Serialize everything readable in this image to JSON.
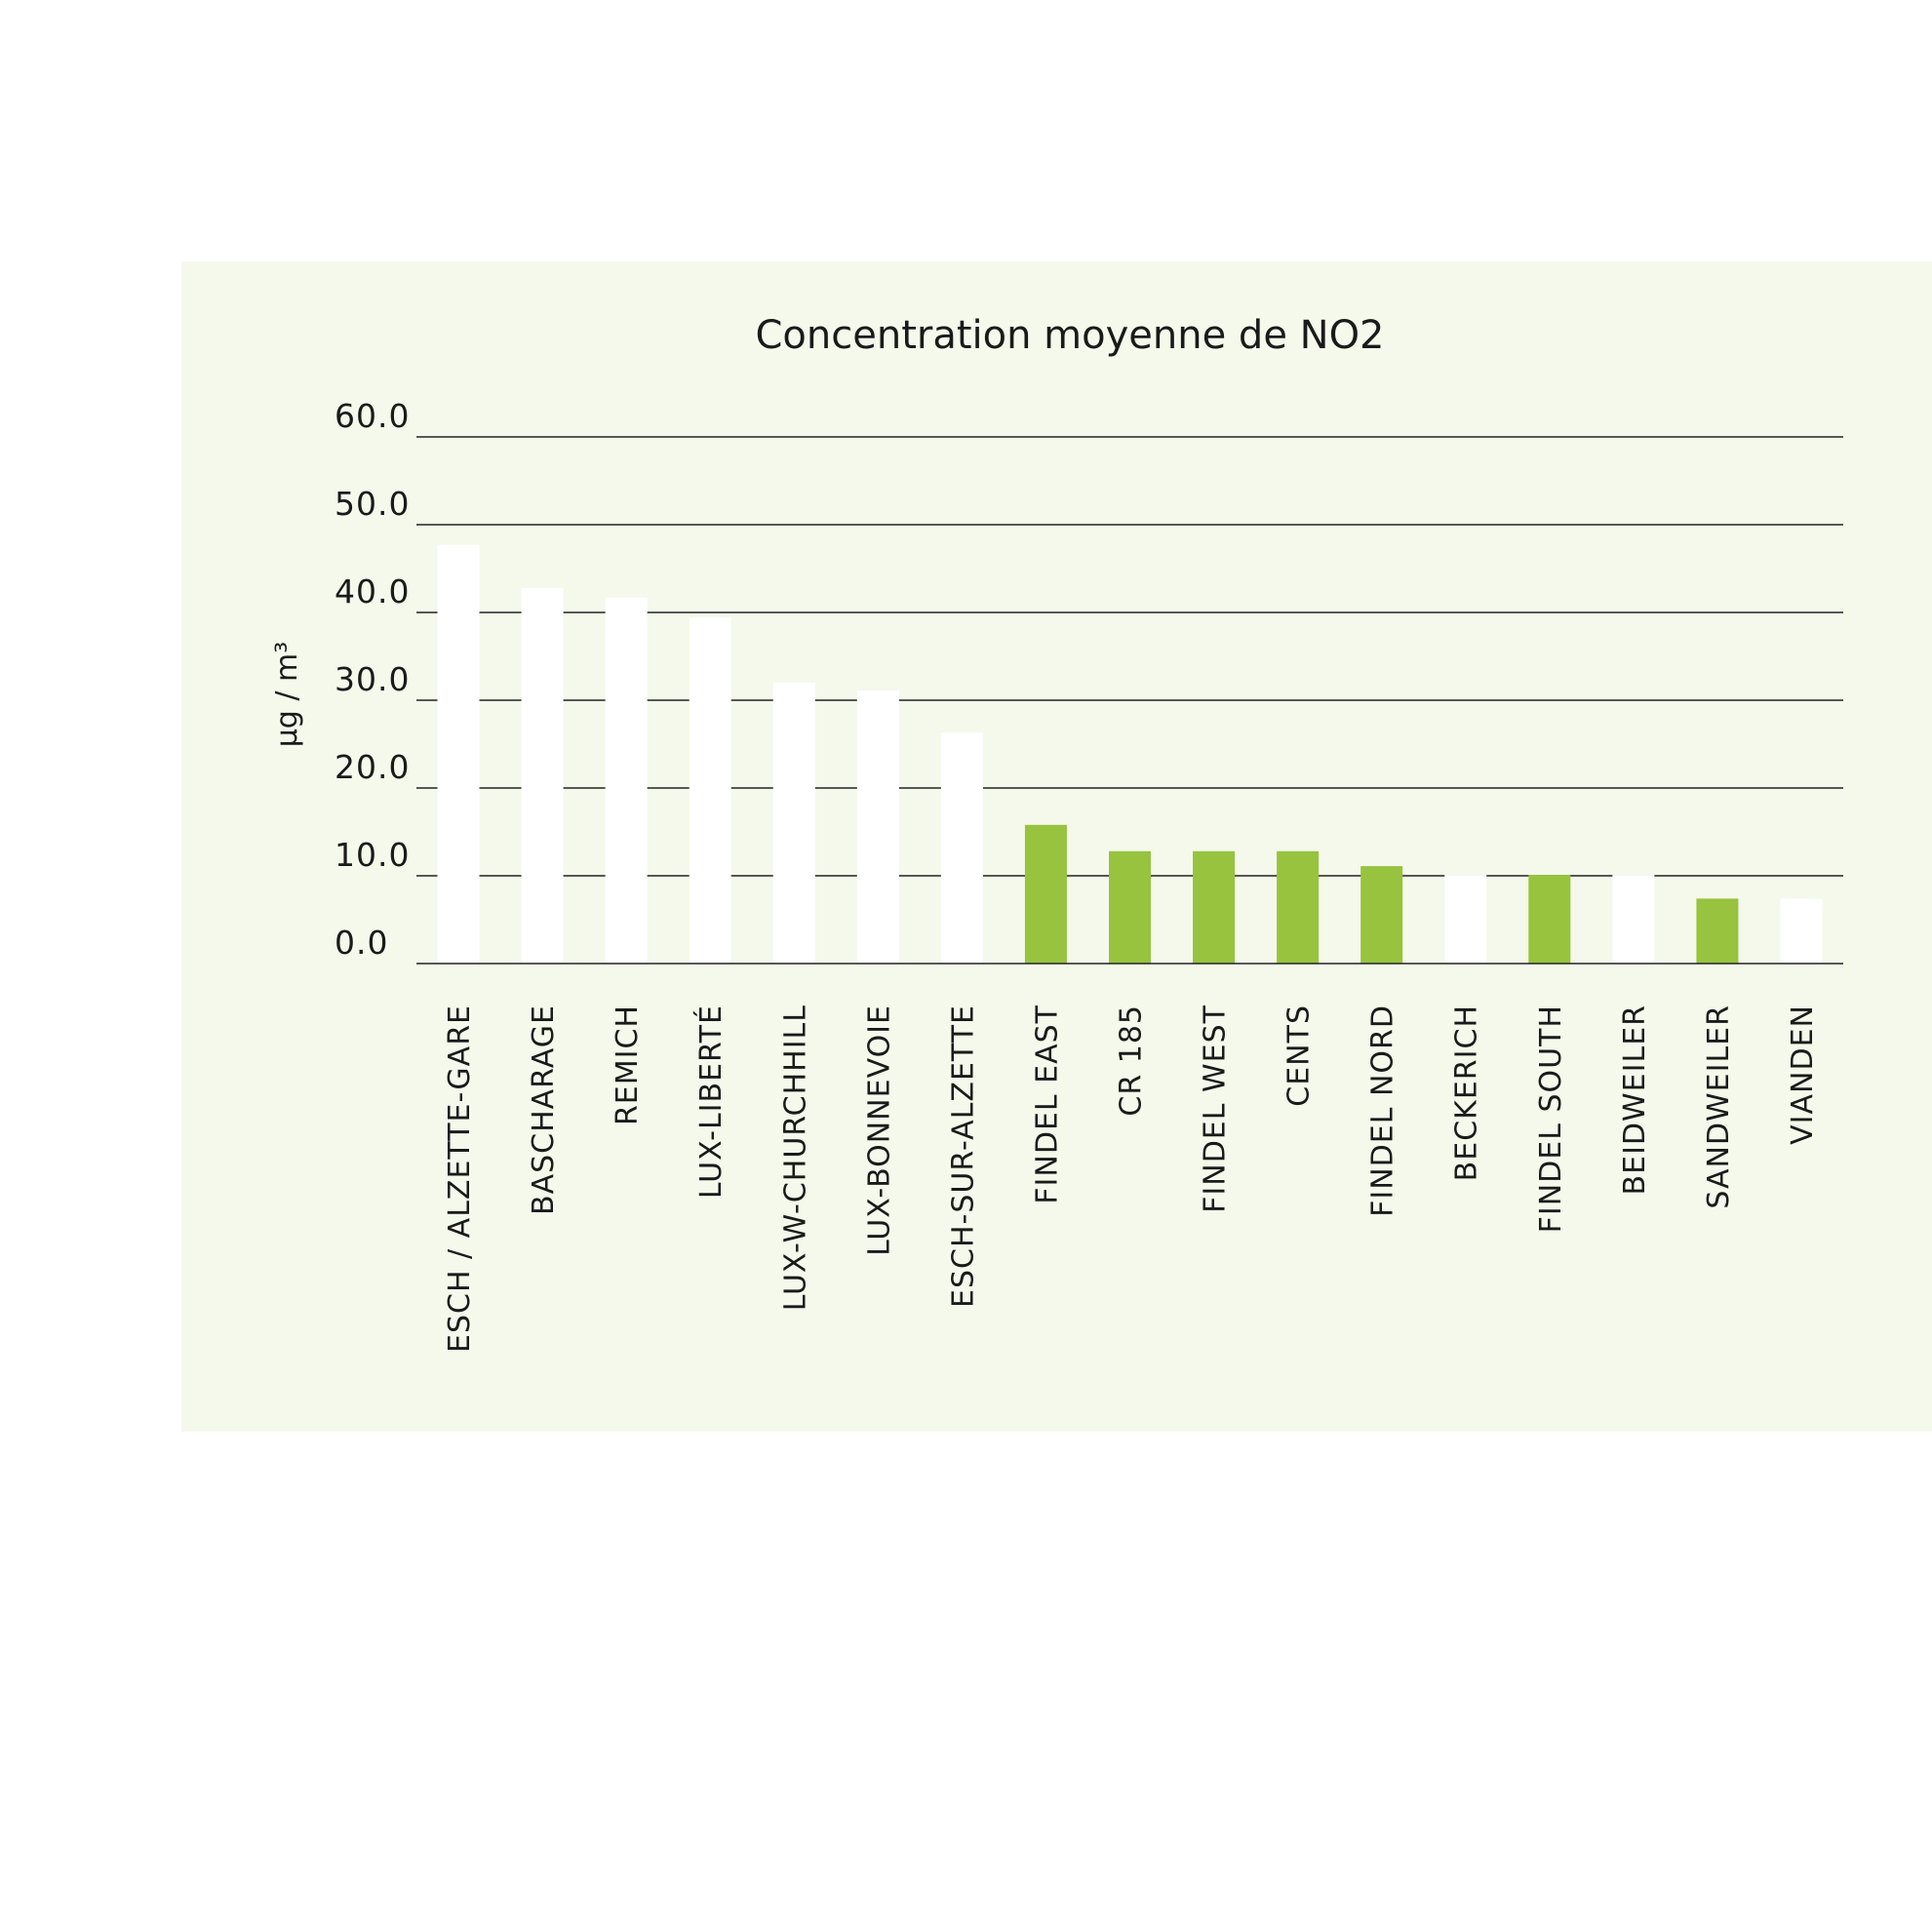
{
  "chart_data": {
    "type": "bar",
    "title": "Concentration moyenne de NO2",
    "ylabel": "µg / m³",
    "xlabel": "",
    "ylim": [
      0,
      60
    ],
    "yticks": [
      "0.0",
      "10.0",
      "20.0",
      "30.0",
      "40.0",
      "50.0",
      "60.0"
    ],
    "grid": true,
    "categories": [
      "ESCH / ALZETTE-GARE",
      "BASCHARAGE",
      "REMICH",
      "LUX-LIBERTÉ",
      "LUX-W-CHURCHHILL",
      "LUX-BONNEVOIE",
      "ESCH-SUR-ALZETTE",
      "FINDEL EAST",
      "CR 185",
      "FINDEL WEST",
      "CENTS",
      "FINDEL NORD",
      "BECKERICH",
      "FINDEL SOUTH",
      "BEIDWEILER",
      "SANDWEILER",
      "VIANDEN"
    ],
    "values": [
      47.7,
      42.8,
      41.7,
      39.4,
      32.0,
      31.1,
      26.3,
      15.8,
      12.8,
      12.8,
      12.8,
      11.1,
      10.1,
      10.1,
      10.1,
      7.4,
      7.4
    ],
    "bar_colors": [
      "#ffffff",
      "#ffffff",
      "#ffffff",
      "#ffffff",
      "#ffffff",
      "#ffffff",
      "#ffffff",
      "#97c33f",
      "#97c33f",
      "#97c33f",
      "#97c33f",
      "#97c33f",
      "#ffffff",
      "#97c33f",
      "#ffffff",
      "#97c33f",
      "#ffffff"
    ]
  },
  "colors": {
    "panel_background": "#f4f9eb",
    "gridline": "#222222",
    "bar_white": "#ffffff",
    "bar_green": "#97c33f"
  }
}
